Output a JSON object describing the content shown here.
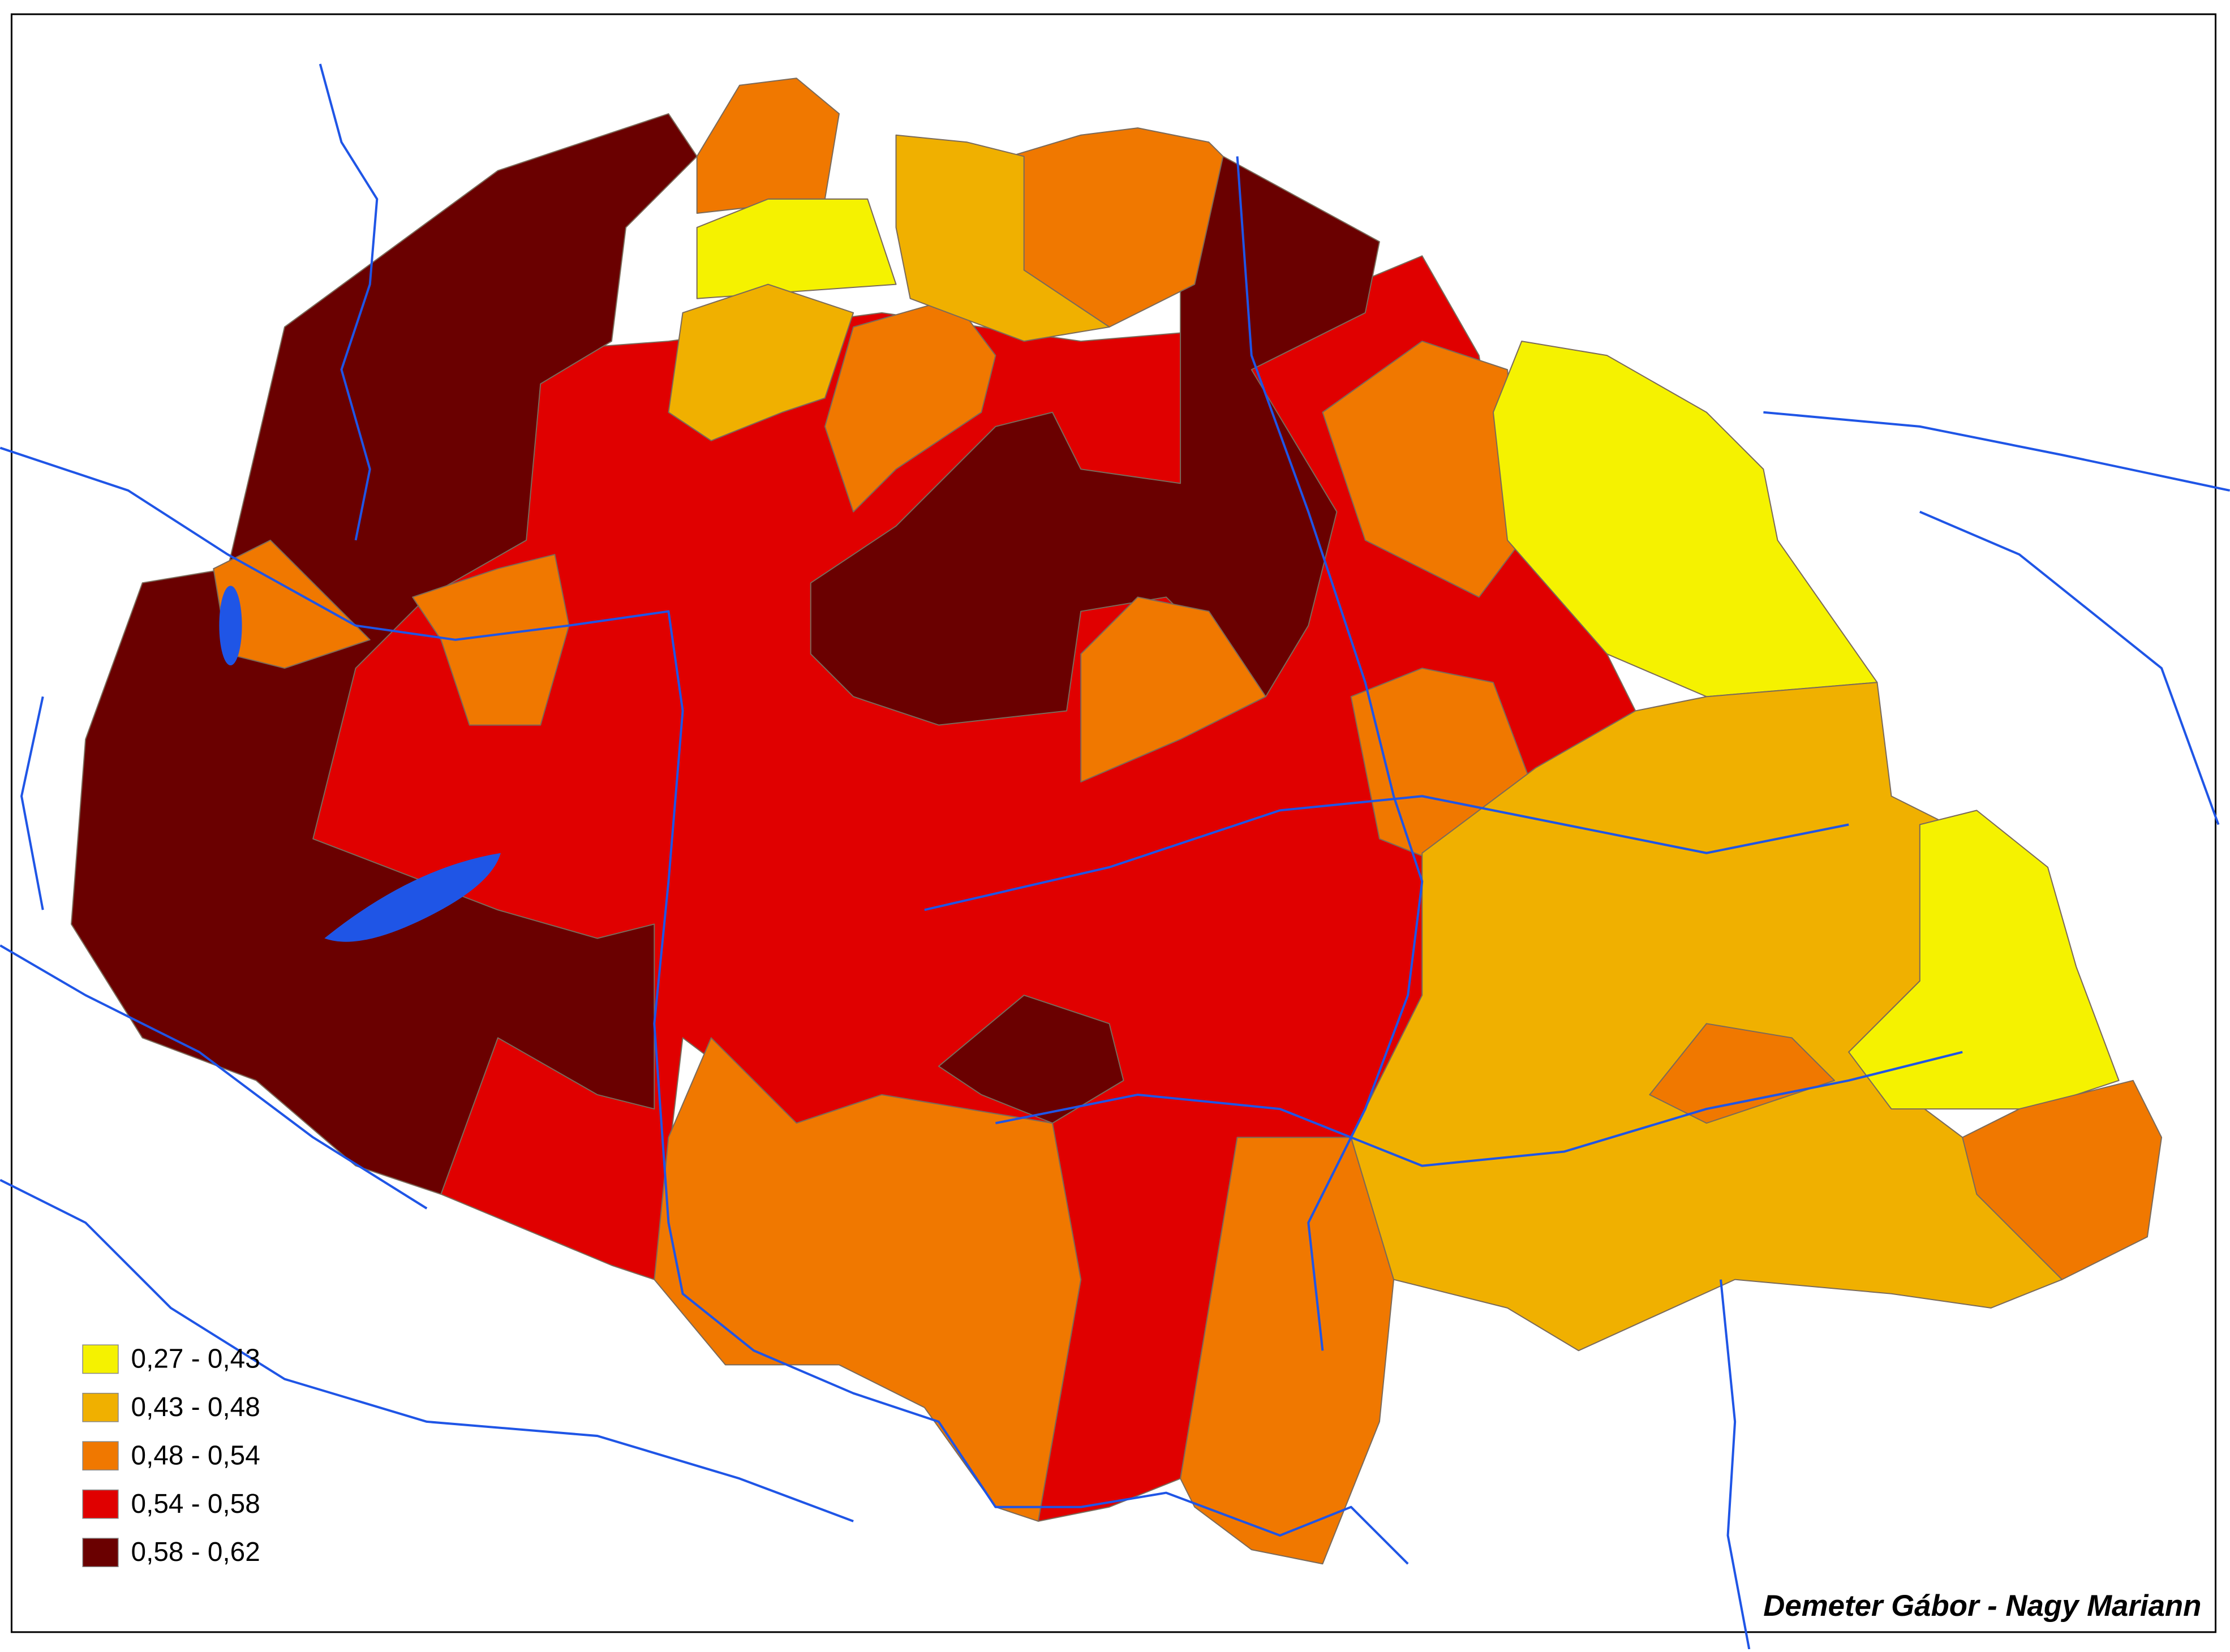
{
  "legend": {
    "items": [
      {
        "label": "0,27  - 0,43",
        "color": "#f5f200"
      },
      {
        "label": "0,43  - 0,48",
        "color": "#f0b000"
      },
      {
        "label": "0,48  - 0,54",
        "color": "#f07800"
      },
      {
        "label": "0,54  - 0,58",
        "color": "#e00000"
      },
      {
        "label": "0,58  - 0,62",
        "color": "#6a0000"
      }
    ]
  },
  "credit": "Demeter Gábor - Nagy Mariann"
}
